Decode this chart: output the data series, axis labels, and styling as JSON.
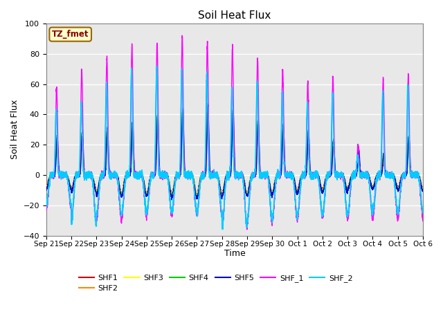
{
  "title": "Soil Heat Flux",
  "ylabel": "Soil Heat Flux",
  "xlabel": "Time",
  "ylim": [
    -40,
    100
  ],
  "series": {
    "SHF1": {
      "color": "#cc0000",
      "lw": 1.0
    },
    "SHF2": {
      "color": "#ff8800",
      "lw": 1.0
    },
    "SHF3": {
      "color": "#ffff00",
      "lw": 1.0
    },
    "SHF4": {
      "color": "#00cc00",
      "lw": 1.0
    },
    "SHF5": {
      "color": "#0000cc",
      "lw": 1.0
    },
    "SHF_1": {
      "color": "#ff00ff",
      "lw": 1.0
    },
    "SHF_2": {
      "color": "#00ccff",
      "lw": 1.2
    }
  },
  "legend_order": [
    "SHF1",
    "SHF2",
    "SHF3",
    "SHF4",
    "SHF5",
    "SHF_1",
    "SHF_2"
  ],
  "tz_label": "TZ_fmet",
  "tz_box_color": "#ffffcc",
  "tz_border_color": "#996600",
  "background_color": "#e8e8e8",
  "grid_color": "#ffffff",
  "n_days": 15,
  "start_day": 21,
  "start_month": "Sep",
  "day_peaks_shf15": [
    22,
    25,
    27,
    30,
    35,
    38,
    40,
    38,
    32,
    28,
    25,
    20,
    15,
    12,
    22
  ],
  "day_peaks_shf1": [
    57,
    70,
    77,
    85,
    87,
    91,
    88,
    85,
    77,
    70,
    61,
    65,
    20,
    63,
    66
  ],
  "day_peaks_shf2": [
    43,
    47,
    62,
    70,
    72,
    70,
    67,
    58,
    62,
    55,
    47,
    54,
    12,
    55,
    60
  ],
  "day_troughs_shf15": [
    -8,
    -10,
    -12,
    -12,
    -12,
    -13,
    -13,
    -12,
    -12,
    -11,
    -10,
    -10,
    -8,
    -8,
    -9
  ],
  "day_troughs_shf1": [
    -22,
    -30,
    -30,
    -28,
    -26,
    -26,
    -26,
    -35,
    -32,
    -30,
    -28,
    -28,
    -28,
    -28,
    -28
  ],
  "day_troughs_shf2": [
    -20,
    -32,
    -26,
    -26,
    -24,
    -24,
    -24,
    -35,
    -30,
    -28,
    -26,
    -26,
    -26,
    -24,
    -24
  ]
}
